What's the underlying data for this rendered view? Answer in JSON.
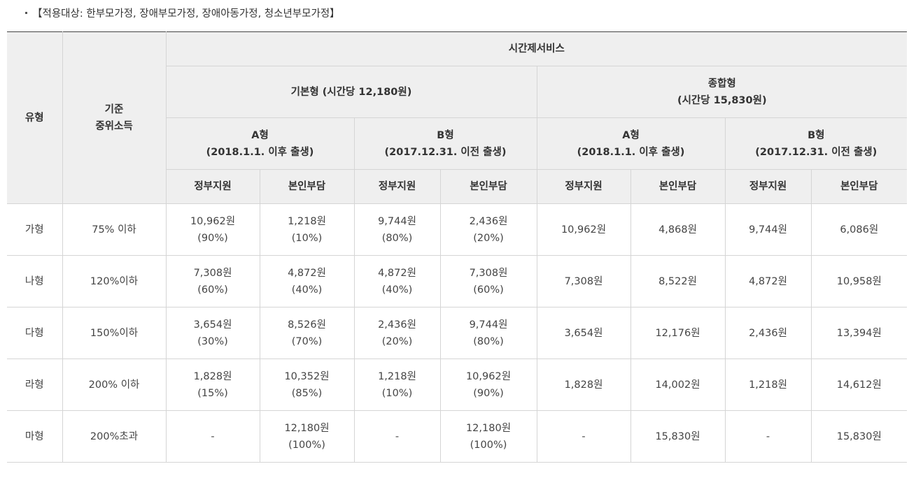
{
  "note": {
    "bullet": "·",
    "text": "【적용대상: 한부모가정, 장애부모가정, 장애아동가정, 청소년부모가정】"
  },
  "header": {
    "type": "유형",
    "income_line1": "기준",
    "income_line2": "중위소득",
    "service": "시간제서비스",
    "basic": "기본형 (시간당 12,180원)",
    "combined_line1": "종합형",
    "combined_line2": "(시간당 15,830원)",
    "a_type": "A형",
    "a_desc": "(2018.1.1. 이후 출생)",
    "b_type": "B형",
    "b_desc": "(2017.12.31. 이전 출생)",
    "gov": "정부지원",
    "self": "본인부담"
  },
  "rows": [
    {
      "type": "가형",
      "income": "75% 이하",
      "basic_a_gov": "10,962원",
      "basic_a_gov_pct": "(90%)",
      "basic_a_self": "1,218원",
      "basic_a_self_pct": "(10%)",
      "basic_b_gov": "9,744원",
      "basic_b_gov_pct": "(80%)",
      "basic_b_self": "2,436원",
      "basic_b_self_pct": "(20%)",
      "comb_a_gov": "10,962원",
      "comb_a_self": "4,868원",
      "comb_b_gov": "9,744원",
      "comb_b_self": "6,086원"
    },
    {
      "type": "나형",
      "income": "120%이하",
      "basic_a_gov": "7,308원",
      "basic_a_gov_pct": "(60%)",
      "basic_a_self": "4,872원",
      "basic_a_self_pct": "(40%)",
      "basic_b_gov": "4,872원",
      "basic_b_gov_pct": "(40%)",
      "basic_b_self": "7,308원",
      "basic_b_self_pct": "(60%)",
      "comb_a_gov": "7,308원",
      "comb_a_self": "8,522원",
      "comb_b_gov": "4,872원",
      "comb_b_self": "10,958원"
    },
    {
      "type": "다형",
      "income": "150%이하",
      "basic_a_gov": "3,654원",
      "basic_a_gov_pct": "(30%)",
      "basic_a_self": "8,526원",
      "basic_a_self_pct": "(70%)",
      "basic_b_gov": "2,436원",
      "basic_b_gov_pct": "(20%)",
      "basic_b_self": "9,744원",
      "basic_b_self_pct": "(80%)",
      "comb_a_gov": "3,654원",
      "comb_a_self": "12,176원",
      "comb_b_gov": "2,436원",
      "comb_b_self": "13,394원"
    },
    {
      "type": "라형",
      "income": "200% 이하",
      "basic_a_gov": "1,828원",
      "basic_a_gov_pct": "(15%)",
      "basic_a_self": "10,352원",
      "basic_a_self_pct": "(85%)",
      "basic_b_gov": "1,218원",
      "basic_b_gov_pct": "(10%)",
      "basic_b_self": "10,962원",
      "basic_b_self_pct": "(90%)",
      "comb_a_gov": "1,828원",
      "comb_a_self": "14,002원",
      "comb_b_gov": "1,218원",
      "comb_b_self": "14,612원"
    },
    {
      "type": "마형",
      "income": "200%초과",
      "basic_a_gov": "-",
      "basic_a_gov_pct": "",
      "basic_a_self": "12,180원",
      "basic_a_self_pct": "(100%)",
      "basic_b_gov": "-",
      "basic_b_gov_pct": "",
      "basic_b_self": "12,180원",
      "basic_b_self_pct": "(100%)",
      "comb_a_gov": "-",
      "comb_a_self": "15,830원",
      "comb_b_gov": "-",
      "comb_b_self": "15,830원"
    }
  ]
}
